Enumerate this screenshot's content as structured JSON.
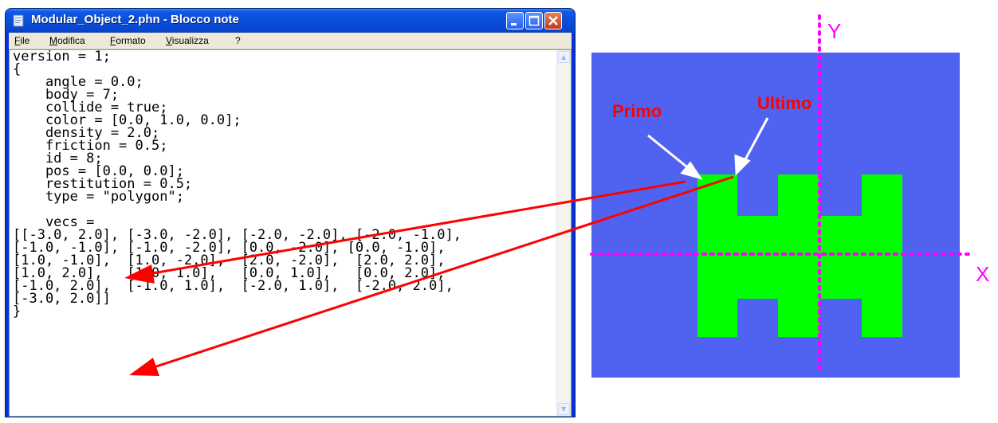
{
  "window": {
    "title": "Modular_Object_2.phn - Blocco note",
    "menu": [
      "File",
      "Modifica",
      "Formato",
      "Visualizza",
      "?"
    ]
  },
  "editor": {
    "lines": [
      "version = 1;",
      "{",
      "    angle = 0.0;",
      "    body = 7;",
      "    collide = true;",
      "    color = [0.0, 1.0, 0.0];",
      "    density = 2.0;",
      "    friction = 0.5;",
      "    id = 8;",
      "    pos = [0.0, 0.0];",
      "    restitution = 0.5;",
      "    type = \"polygon\";",
      "",
      "    vecs =",
      "[[-3.0, 2.0], [-3.0, -2.0], [-2.0, -2.0], [-2.0, -1.0],",
      "[-1.0, -1.0], [-1.0, -2.0], [0.0, -2.0], [0.0, -1.0],",
      "[1.0, -1.0],  [1.0, -2.0],  [2.0, -2.0],  [2.0, 2.0],",
      "[1.0, 2.0],   [1.0, 1.0],   [0.0, 1.0],   [0.0, 2.0],",
      "[-1.0, 2.0],  [-1.0, 1.0],  [-2.0, 1.0],  [-2.0, 2.0],",
      "[-3.0, 2.0]]",
      "}"
    ]
  },
  "diagram": {
    "axis_x_label": "X",
    "axis_y_label": "Y",
    "primo_label": "Primo",
    "ultimo_label": "Ultimo",
    "background_color": "#4f63f0",
    "shape_color": "#00ff00",
    "axis_color": "#ff00ff",
    "annotation_color": "#ff0000"
  }
}
